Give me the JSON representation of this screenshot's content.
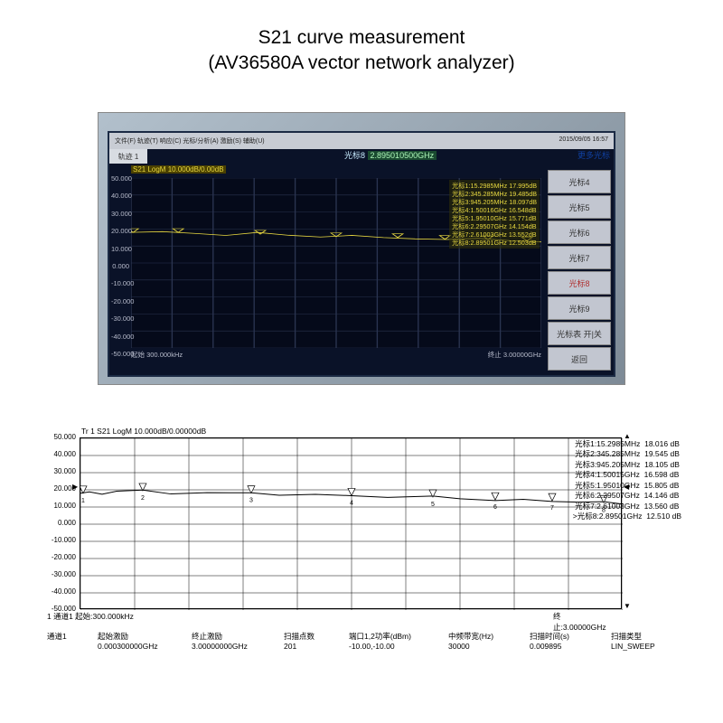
{
  "title_line1": "S21 curve measurement",
  "title_line2": "(AV36580A vector network analyzer)",
  "analyzer": {
    "menu_text": "文件(F) 轨迹(T) 响应(C) 光标/分析(A) 激励(S) 辅助(U)",
    "timestamp": "2015/09/05 16:57",
    "track_tab": "轨迹 1",
    "readout_label": "光标8",
    "readout_value": "2.895010500GHz",
    "more_markers": "更多光标",
    "trace_header": "S21 LogM 10.000dB/0.00dB",
    "side_buttons": [
      "光标4",
      "光标5",
      "光标6",
      "光标7",
      "光标8",
      "光标9",
      "光标表 开|关",
      "返回"
    ],
    "highlight_idx": 4,
    "y_ticks": [
      50,
      40,
      30,
      20,
      10,
      0,
      -10,
      -20,
      -30,
      -40,
      -50
    ],
    "ylim": [
      -50,
      50
    ],
    "grid_n_x": 10,
    "grid_n_y": 10,
    "background_color": "#050a1a",
    "grid_color": "#2a3450",
    "trace_color": "#e8d840",
    "trace_profile": [
      18,
      18,
      17.5,
      17,
      17,
      16.5,
      16,
      15.5,
      15,
      14.5,
      14,
      13.8,
      13.5,
      13
    ],
    "bottom_left_label": "起始",
    "bottom_left_value": "300.000kHz",
    "bottom_right_label": "终止",
    "bottom_right_value": "3.00000GHz",
    "markers": [
      {
        "label": "光标1",
        "freq": "15.2985MHz",
        "val": "17.995dB"
      },
      {
        "label": "光标2",
        "freq": "345.285MHz",
        "val": "19.485dB"
      },
      {
        "label": "光标3",
        "freq": "945.205MHz",
        "val": "18.097dB"
      },
      {
        "label": "光标4",
        "freq": "1.50016GHz",
        "val": "16.548dB"
      },
      {
        "label": "光标5",
        "freq": "1.95010GHz",
        "val": "15.771dB"
      },
      {
        "label": "光标6",
        "freq": "2.29507GHz",
        "val": "14.154dB"
      },
      {
        "label": "光标7",
        "freq": "2.61003GHz",
        "val": "13.552dB"
      },
      {
        "label": "光标8",
        "freq": "2.89501GHz",
        "val": "12.503dB"
      }
    ]
  },
  "lower": {
    "trace_header": "Tr 1  S21 LogM  10.000dB/0.00000dB",
    "type": "line",
    "y_ticks": [
      50,
      40,
      30,
      20,
      10,
      0,
      -10,
      -20,
      -30,
      -40,
      -50
    ],
    "ylim": [
      -50,
      50
    ],
    "xlim": [
      0.0003,
      3.0
    ],
    "grid_n_x": 10,
    "grid_n_y": 10,
    "grid_color": "#000000",
    "trace_color": "#000000",
    "background_color": "#ffffff",
    "trace_x": [
      0.0003,
      0.05,
      0.12,
      0.2,
      0.345,
      0.5,
      0.7,
      0.945,
      1.1,
      1.3,
      1.5,
      1.7,
      1.95,
      2.1,
      2.295,
      2.45,
      2.61,
      2.75,
      2.895,
      3.0
    ],
    "trace_y": [
      18.0,
      18.3,
      18.0,
      19.0,
      19.5,
      18.2,
      18.0,
      18.1,
      17.4,
      16.9,
      16.6,
      16.1,
      15.8,
      15.0,
      14.1,
      13.9,
      13.6,
      13.0,
      12.5,
      12.2
    ],
    "markers": [
      {
        "n": 1,
        "label": "光标1",
        "freq": "15.2985MHz",
        "val": "18.016 dB",
        "x": 0.0153,
        "y": 18.0
      },
      {
        "n": 2,
        "label": "光标2",
        "freq": "345.285MHz",
        "val": "19.545 dB",
        "x": 0.345,
        "y": 19.5
      },
      {
        "n": 3,
        "label": "光标3",
        "freq": "945.205MHz",
        "val": "18.105 dB",
        "x": 0.945,
        "y": 18.1
      },
      {
        "n": 4,
        "label": "光标4",
        "freq": "1.50015GHz",
        "val": "16.598 dB",
        "x": 1.5,
        "y": 16.6
      },
      {
        "n": 5,
        "label": "光标5",
        "freq": "1.95010GHz",
        "val": "15.805 dB",
        "x": 1.95,
        "y": 15.8
      },
      {
        "n": 6,
        "label": "光标6",
        "freq": "2.29507GHz",
        "val": "14.146 dB",
        "x": 2.295,
        "y": 14.1
      },
      {
        "n": 7,
        "label": "光标7",
        "freq": "2.61003GHz",
        "val": "13.560 dB",
        "x": 2.61,
        "y": 13.6
      },
      {
        "n": 8,
        "label": "光标8",
        "freq": "2.89501GHz",
        "val": "12.510 dB",
        "x": 2.895,
        "y": 12.5,
        "active": true
      }
    ],
    "ch_footer_left": "1  通道1    起始:300.000kHz",
    "ch_footer_right": "终止:3.00000GHz",
    "params_hdr": [
      "通道1",
      "起始激励",
      "终止激励",
      "扫描点数",
      "端口1,2功率(dBm)",
      "中频带宽(Hz)",
      "扫描时间(s)",
      "扫描类型"
    ],
    "params_val": [
      "",
      "0.000300000GHz",
      "3.00000000GHz",
      "201",
      "-10.00,-10.00",
      "30000",
      "0.009895",
      "LIN_SWEEP"
    ]
  }
}
